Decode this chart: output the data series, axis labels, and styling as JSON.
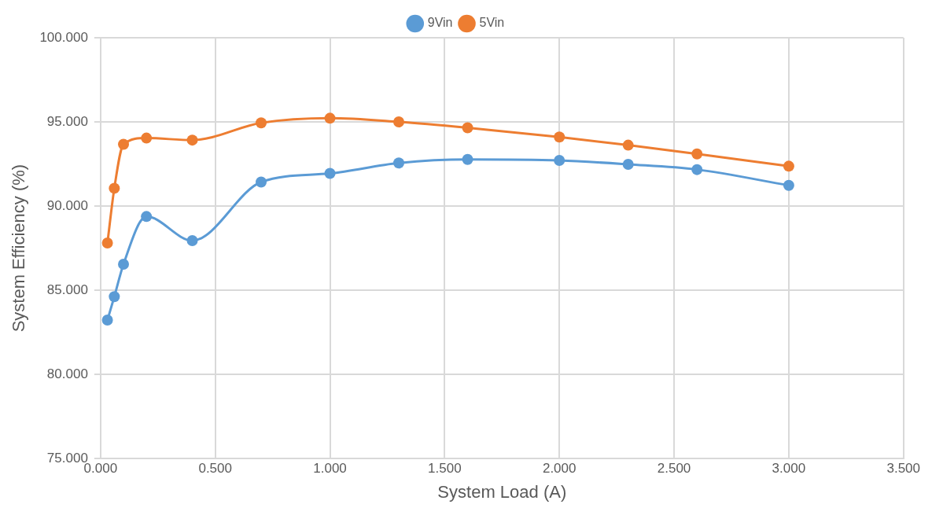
{
  "chart_data": {
    "type": "line",
    "xlabel": "System Load (A)",
    "ylabel": "System Efficiency (%)",
    "x": [
      0.03,
      0.06,
      0.1,
      0.2,
      0.4,
      0.7,
      1.0,
      1.3,
      1.6,
      2.0,
      2.3,
      2.6,
      3.0
    ],
    "series": [
      {
        "name": "9Vin",
        "color": "#5b9bd5",
        "values": [
          83.23,
          84.62,
          86.55,
          89.38,
          87.95,
          91.43,
          91.94,
          92.56,
          92.77,
          92.71,
          92.48,
          92.17,
          91.23
        ]
      },
      {
        "name": "5Vin",
        "color": "#ed7d31",
        "values": [
          87.81,
          91.06,
          93.67,
          94.04,
          93.92,
          94.94,
          95.22,
          95.0,
          94.65,
          94.1,
          93.62,
          93.1,
          92.37
        ]
      }
    ],
    "xlim": [
      0,
      3.5
    ],
    "xticks": [
      {
        "value": 0,
        "label": "0.000"
      },
      {
        "value": 0.5,
        "label": "0.500"
      },
      {
        "value": 1,
        "label": "1.000"
      },
      {
        "value": 1.5,
        "label": "1.500"
      },
      {
        "value": 2,
        "label": "2.000"
      },
      {
        "value": 2.5,
        "label": "2.500"
      },
      {
        "value": 3,
        "label": "3.000"
      },
      {
        "value": 3.5,
        "label": "3.500"
      }
    ],
    "ylim": [
      75,
      100
    ],
    "yticks": [
      {
        "value": 75,
        "label": "75.000"
      },
      {
        "value": 80,
        "label": "80.000"
      },
      {
        "value": 85,
        "label": "85.000"
      },
      {
        "value": 90,
        "label": "90.000"
      },
      {
        "value": 95,
        "label": "95.000"
      },
      {
        "value": 100,
        "label": "100.000"
      }
    ],
    "grid": true,
    "legend": "top",
    "marker": "circle",
    "line_style": "solid"
  }
}
